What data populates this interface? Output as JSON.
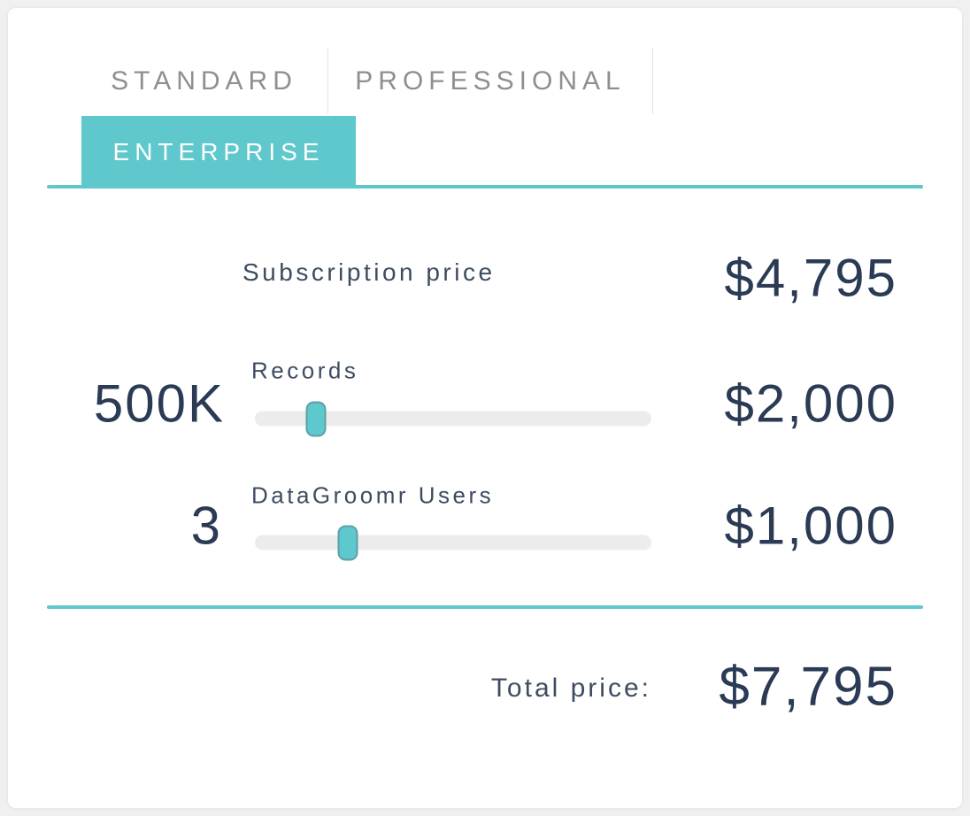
{
  "theme": {
    "accent_teal": "#5ec8cc",
    "navy_text": "#2b3a55",
    "label_text": "#3d4c61",
    "inactive_tab_text": "#8d8f90",
    "track_gray": "#ececec",
    "card_background": "#ffffff",
    "page_background": "#f0f0f1"
  },
  "tabs": [
    {
      "label": "STANDARD",
      "active": false
    },
    {
      "label": "PROFESSIONAL",
      "active": false
    },
    {
      "label": "ENTERPRISE",
      "active": true
    }
  ],
  "subscription": {
    "label": "Subscription price",
    "price": "$4,795"
  },
  "records": {
    "label": "Records",
    "value": "500K",
    "price": "$2,000",
    "slider_percent": 15.4
  },
  "users": {
    "label": "DataGroomr Users",
    "value": "3",
    "price": "$1,000",
    "slider_percent": 23.4
  },
  "total": {
    "label": "Total price:",
    "price": "$7,795"
  }
}
